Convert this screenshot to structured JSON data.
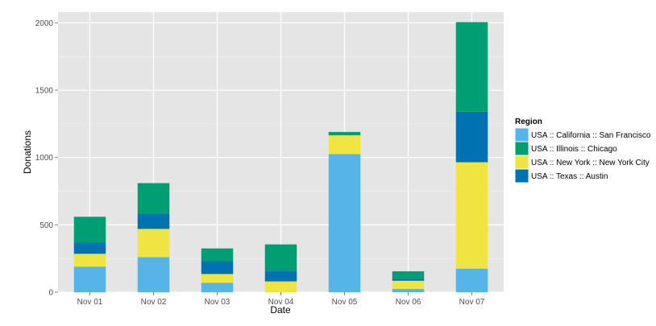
{
  "chart_data": {
    "type": "bar",
    "stacked": true,
    "xlabel": "Date",
    "ylabel": "Donations",
    "ylim": [
      0,
      2080
    ],
    "yticks": [
      0,
      500,
      1000,
      1500,
      2000
    ],
    "categories": [
      "Nov 01",
      "Nov 02",
      "Nov 03",
      "Nov 04",
      "Nov 05",
      "Nov 06",
      "Nov 07"
    ],
    "series": [
      {
        "name": "USA :: California :: San Francisco",
        "color": "#56B4E9",
        "values": [
          190,
          260,
          70,
          0,
          1025,
          25,
          175
        ]
      },
      {
        "name": "USA :: New York :: New York City",
        "color": "#F0E442",
        "values": [
          95,
          210,
          65,
          80,
          140,
          60,
          790
        ]
      },
      {
        "name": "USA :: Texas :: Austin",
        "color": "#0072B2",
        "values": [
          85,
          115,
          95,
          80,
          0,
          15,
          375
        ]
      },
      {
        "name": "USA :: Illinois :: Chicago",
        "color": "#009E73",
        "values": [
          190,
          225,
          95,
          195,
          25,
          55,
          665
        ]
      }
    ],
    "legend": {
      "title": "Region",
      "position": "right",
      "order": [
        "USA :: California :: San Francisco",
        "USA :: Illinois :: Chicago",
        "USA :: New York :: New York City",
        "USA :: Texas :: Austin"
      ]
    },
    "grid": true,
    "panel_background": "#E5E5E5",
    "grid_color": "#FFFFFF"
  }
}
